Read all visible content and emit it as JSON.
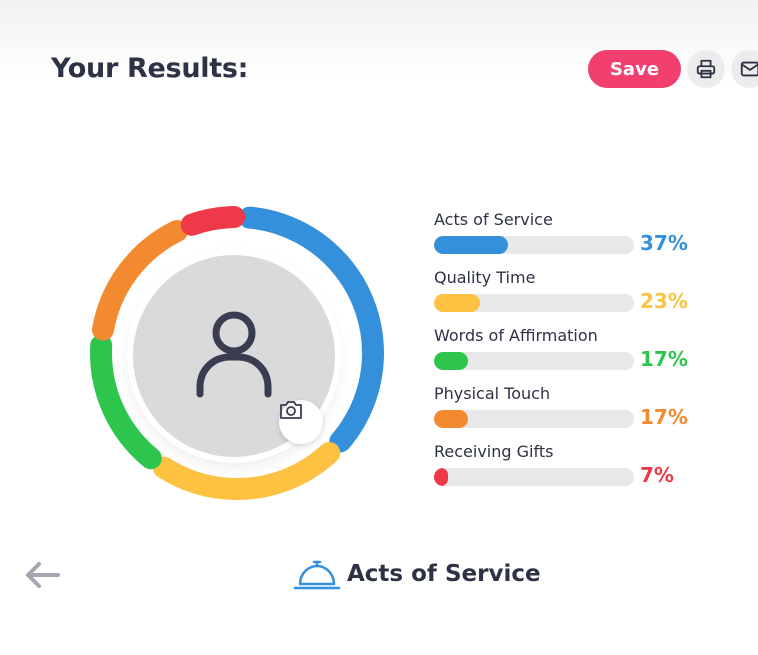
{
  "header": {
    "title": "Your Results:",
    "save_label": "Save",
    "icons": [
      "printer-icon",
      "mail-icon"
    ]
  },
  "colors": {
    "accent": "#f13f6e",
    "acts_of_service": "#3590dc",
    "quality_time": "#fec243",
    "words_of_affirmation": "#2ec54d",
    "physical_touch": "#f48a2f",
    "receiving_gifts": "#ee3a48"
  },
  "results": [
    {
      "label": "Acts of Service",
      "percent_text": "37%",
      "value": 0.37,
      "color": "#3590dc"
    },
    {
      "label": "Quality Time",
      "percent_text": "23%",
      "value": 0.23,
      "color": "#fec243"
    },
    {
      "label": "Words of Affirmation",
      "percent_text": "17%",
      "value": 0.17,
      "color": "#2ec54d"
    },
    {
      "label": "Physical Touch",
      "percent_text": "17%",
      "value": 0.17,
      "color": "#f48a2f"
    },
    {
      "label": "Receiving Gifts",
      "percent_text": "7%",
      "value": 0.07,
      "color": "#ee3a48"
    }
  ],
  "footer": {
    "primary_label": "Acts of Service",
    "icon": "service-bell-icon"
  }
}
